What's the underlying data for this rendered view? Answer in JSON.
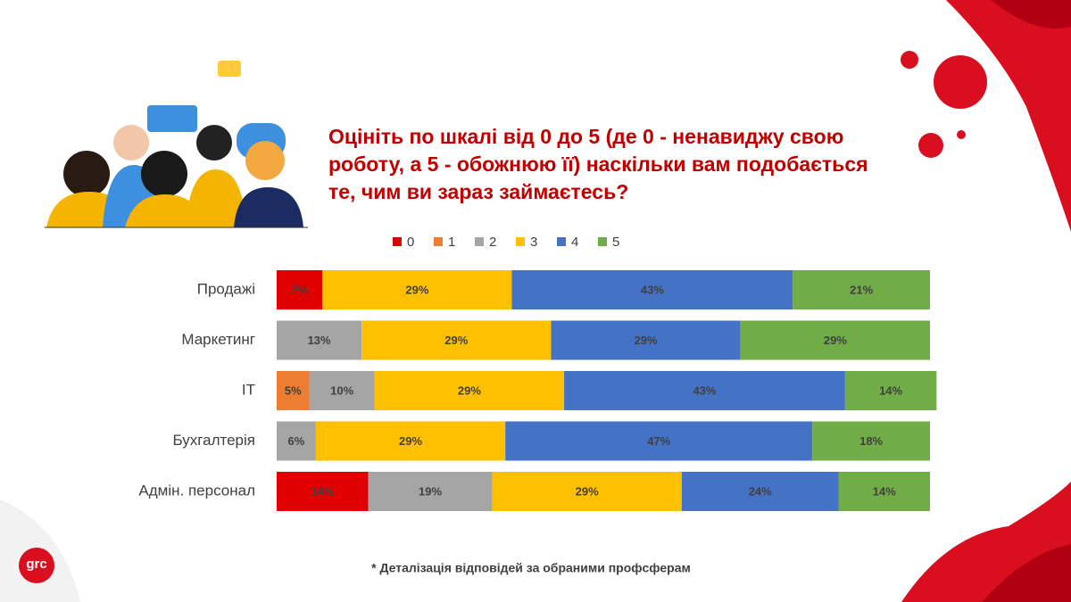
{
  "logo": "grc",
  "chart_data": {
    "type": "stacked-bar-horizontal",
    "title": "Оцініть по шкалі від 0 до 5 (де 0 - ненавиджу свою роботу, а 5 - обожнюю її) наскільки вам подобається те, чим ви зараз займаєтесь?",
    "note": "* Деталізація відповідей за обраними профсферам",
    "categories": [
      "Продажі",
      "Маркетинг",
      "IT",
      "Бухгалтерія",
      "Адмін. персонал"
    ],
    "xlim": [
      0,
      100
    ],
    "legend": "top",
    "series": [
      {
        "name": "0",
        "color": "#e00000",
        "values": [
          7,
          null,
          null,
          null,
          14
        ],
        "value_labels": [
          "7%",
          null,
          null,
          null,
          "14%"
        ]
      },
      {
        "name": "1",
        "color": "#ed7d31",
        "values": [
          null,
          null,
          5,
          null,
          null
        ],
        "value_labels": [
          null,
          null,
          "5%",
          null,
          null
        ]
      },
      {
        "name": "2",
        "color": "#a5a5a5",
        "values": [
          null,
          13,
          10,
          6,
          19
        ],
        "value_labels": [
          null,
          "13%",
          "10%",
          "6%",
          "19%"
        ]
      },
      {
        "name": "3",
        "color": "#ffc000",
        "values": [
          29,
          29,
          29,
          29,
          29
        ],
        "value_labels": [
          "29%",
          "29%",
          "29%",
          "29%",
          "29%"
        ]
      },
      {
        "name": "4",
        "color": "#4472c4",
        "values": [
          43,
          29,
          43,
          47,
          24
        ],
        "value_labels": [
          "43%",
          "29%",
          "43%",
          "47%",
          "24%"
        ]
      },
      {
        "name": "5",
        "color": "#70ad47",
        "values": [
          21,
          29,
          14,
          18,
          14
        ],
        "value_labels": [
          "21%",
          "29%",
          "14%",
          "18%",
          "14%"
        ]
      }
    ]
  }
}
